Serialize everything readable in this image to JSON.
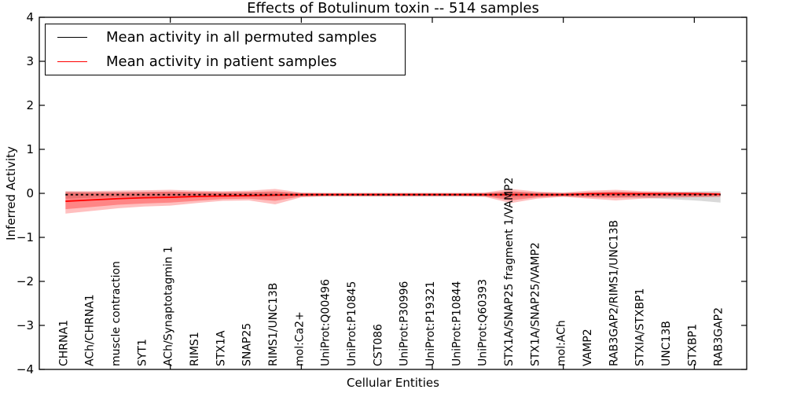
{
  "chart_data": {
    "type": "line",
    "title": "Effects of Botulinum toxin -- 514 samples",
    "xlabel": "Cellular Entities",
    "ylabel": "Inferred Activity",
    "ylim": [
      -4,
      4
    ],
    "xlim": [
      0,
      27
    ],
    "grid": false,
    "legend_position": "upper left",
    "y_ticks": [
      -4,
      -3,
      -2,
      -1,
      0,
      1,
      2,
      3,
      4
    ],
    "x_major_ticks": [
      5,
      10,
      15,
      20,
      25
    ],
    "categories": [
      "CHRNA1",
      "ACh/CHRNA1",
      "muscle contraction",
      "SYT1",
      "ACh/Synaptotagmin 1",
      "RIMS1",
      "STX1A",
      "SNAP25",
      "RIMS1/UNC13B",
      "mol:Ca2+",
      "UniProt:Q00496",
      "UniProt:P10845",
      "CST086",
      "UniProt:P30996",
      "UniProt:P19321",
      "UniProt:P10844",
      "UniProt:Q60393",
      "STX1A/SNAP25 fragment 1/VAMP2",
      "STX1A/SNAP25/VAMP2",
      "mol:ACh",
      "VAMP2",
      "RAB3GAP2/RIMS1/UNC13B",
      "STXIA/STXBP1",
      "UNC13B",
      "STXBP1",
      "RAB3GAP2"
    ],
    "series": [
      {
        "name": "Mean activity in all permuted samples",
        "color": "#000000",
        "style": "dotted",
        "values": [
          -0.03,
          -0.03,
          -0.03,
          -0.03,
          -0.03,
          -0.03,
          -0.03,
          -0.03,
          -0.03,
          -0.03,
          -0.03,
          -0.03,
          -0.03,
          -0.03,
          -0.03,
          -0.03,
          -0.03,
          -0.03,
          -0.03,
          -0.03,
          -0.03,
          -0.03,
          -0.03,
          -0.03,
          -0.03,
          -0.03
        ]
      },
      {
        "name": "Mean activity in patient samples",
        "color": "#ff0000",
        "style": "solid",
        "values": [
          -0.18,
          -0.15,
          -0.12,
          -0.1,
          -0.09,
          -0.07,
          -0.06,
          -0.05,
          -0.04,
          -0.03,
          -0.03,
          -0.03,
          -0.03,
          -0.03,
          -0.03,
          -0.03,
          -0.03,
          -0.03,
          -0.03,
          -0.03,
          -0.01,
          -0.01,
          -0.01,
          -0.01,
          -0.01,
          -0.02
        ]
      }
    ],
    "bands": [
      {
        "name": "permuted-std-band",
        "color": "#000000",
        "opacity": 0.15,
        "upper": [
          0.04,
          0.03,
          0.03,
          0.03,
          0.03,
          0.02,
          0.02,
          0.02,
          0.02,
          0.01,
          0.01,
          0.01,
          0.01,
          0.01,
          0.01,
          0.01,
          0.01,
          0.03,
          0.02,
          0.01,
          0.02,
          0.03,
          0.02,
          0.03,
          0.04,
          0.05
        ],
        "lower": [
          -0.12,
          -0.1,
          -0.09,
          -0.09,
          -0.09,
          -0.08,
          -0.08,
          -0.08,
          -0.08,
          -0.07,
          -0.07,
          -0.07,
          -0.07,
          -0.07,
          -0.07,
          -0.07,
          -0.07,
          -0.09,
          -0.08,
          -0.07,
          -0.08,
          -0.09,
          -0.1,
          -0.13,
          -0.16,
          -0.21
        ]
      },
      {
        "name": "patient-std-outer-band",
        "color": "#ff0000",
        "opacity": 0.25,
        "upper": [
          0.05,
          0.05,
          0.06,
          0.07,
          0.08,
          0.06,
          0.05,
          0.06,
          0.1,
          0.02,
          0.01,
          0.01,
          0.01,
          0.01,
          0.01,
          0.01,
          0.02,
          0.1,
          0.04,
          0.02,
          0.06,
          0.08,
          0.05,
          0.04,
          0.03,
          0.02
        ],
        "lower": [
          -0.46,
          -0.4,
          -0.34,
          -0.3,
          -0.28,
          -0.22,
          -0.17,
          -0.16,
          -0.25,
          -0.09,
          -0.07,
          -0.07,
          -0.07,
          -0.07,
          -0.07,
          -0.07,
          -0.08,
          -0.22,
          -0.12,
          -0.08,
          -0.12,
          -0.16,
          -0.12,
          -0.1,
          -0.09,
          -0.08
        ],
        "": ""
      },
      {
        "name": "patient-std-inner-band",
        "color": "#ff0000",
        "opacity": 0.3,
        "upper": [
          0.02,
          0.02,
          0.02,
          0.03,
          0.04,
          0.03,
          0.02,
          0.03,
          0.05,
          0.0,
          0.0,
          0.0,
          0.0,
          0.0,
          0.0,
          0.0,
          0.0,
          0.05,
          0.01,
          0.0,
          0.02,
          0.04,
          0.02,
          0.01,
          0.01,
          0.0
        ],
        "lower": [
          -0.36,
          -0.31,
          -0.26,
          -0.23,
          -0.21,
          -0.17,
          -0.13,
          -0.12,
          -0.17,
          -0.07,
          -0.05,
          -0.05,
          -0.05,
          -0.05,
          -0.05,
          -0.05,
          -0.06,
          -0.16,
          -0.09,
          -0.06,
          -0.09,
          -0.1,
          -0.08,
          -0.07,
          -0.07,
          -0.06
        ]
      }
    ]
  }
}
